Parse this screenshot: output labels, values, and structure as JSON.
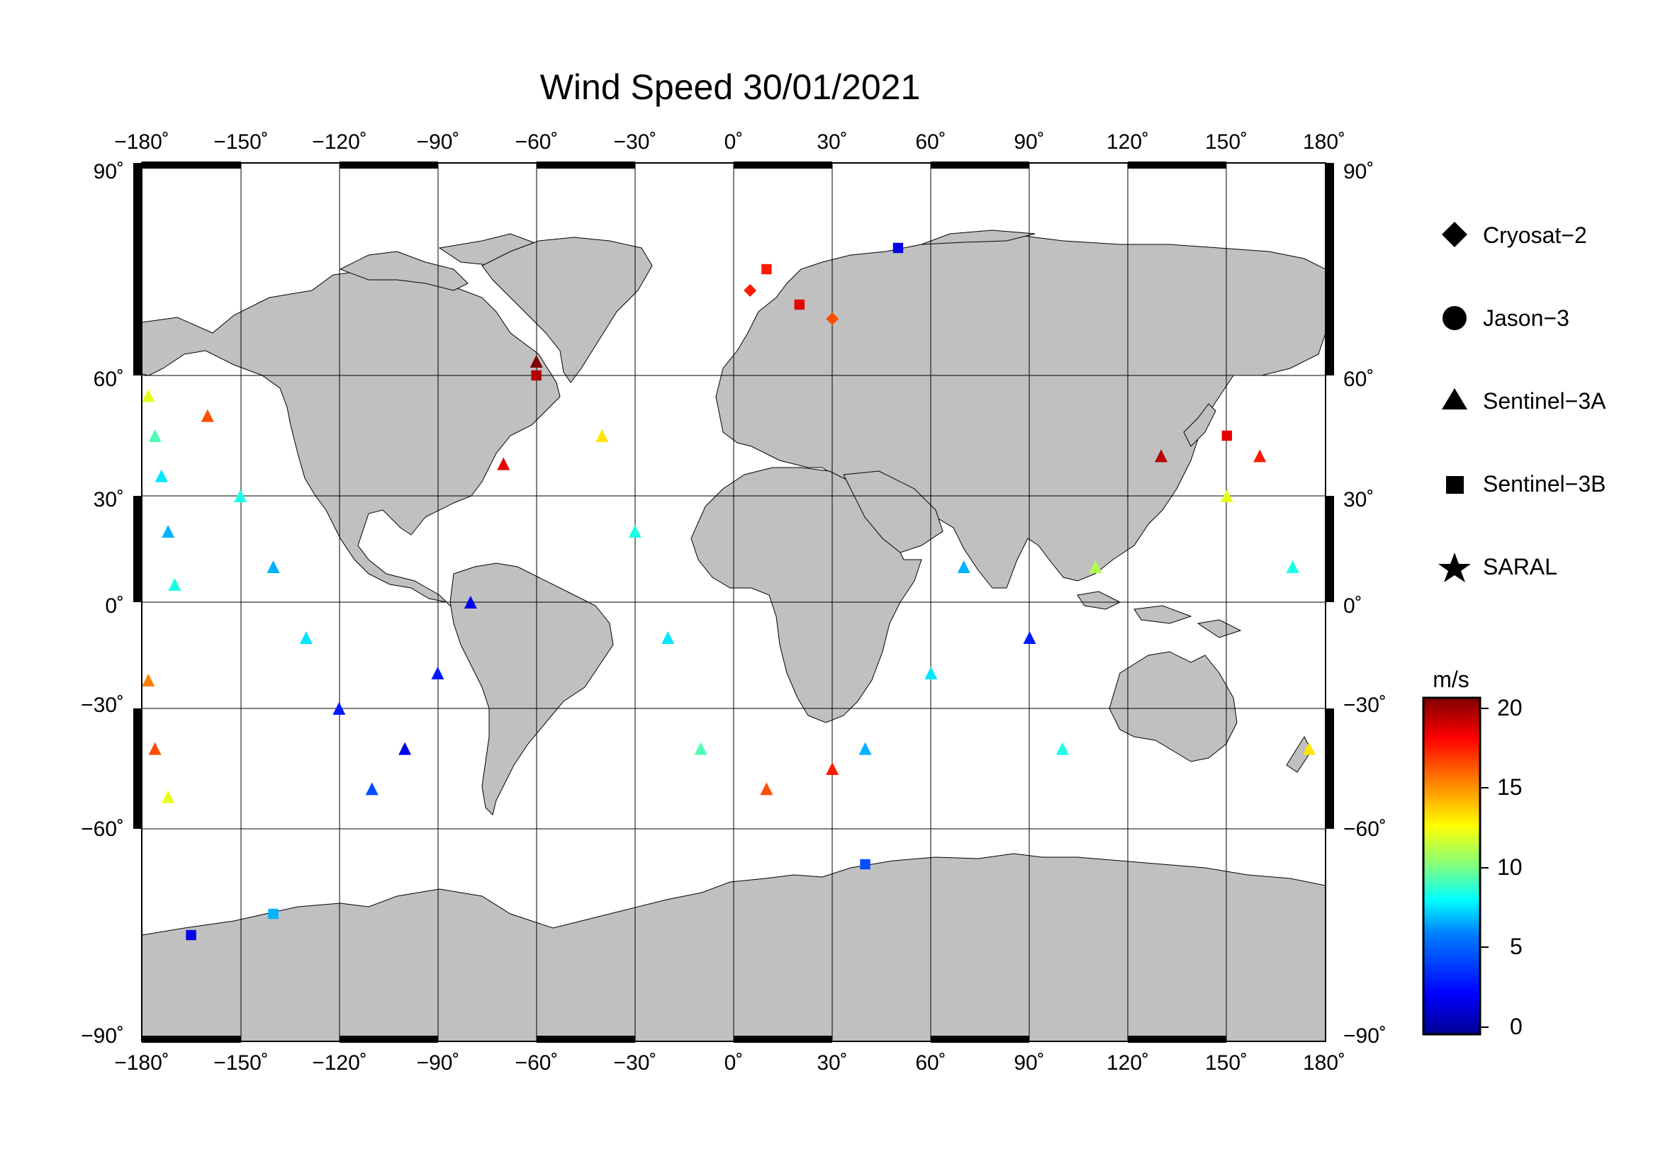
{
  "title": "Wind Speed 30/01/2021",
  "lon_ticks": [
    "−180˚",
    "−150˚",
    "−120˚",
    "−90˚",
    "−60˚",
    "−30˚",
    "0˚",
    "30˚",
    "60˚",
    "90˚",
    "120˚",
    "150˚",
    "180˚"
  ],
  "lat_ticks": [
    "90˚",
    "60˚",
    "30˚",
    "0˚",
    "−30˚",
    "−60˚",
    "−90˚"
  ],
  "legend": [
    {
      "label": "Cryosat−2",
      "symbol": "diamond"
    },
    {
      "label": "Jason−3",
      "symbol": "circle"
    },
    {
      "label": "Sentinel−3A",
      "symbol": "triangle"
    },
    {
      "label": "Sentinel−3B",
      "symbol": "square"
    },
    {
      "label": "SARAL",
      "symbol": "star"
    }
  ],
  "colorbar": {
    "unit": "m/s",
    "min": 0,
    "max": 20,
    "ticks": [
      "20",
      "15",
      "10",
      "5",
      "0"
    ],
    "colormap": [
      "#00008f",
      "#0000ff",
      "#0080ff",
      "#00ffff",
      "#80ff80",
      "#ffff00",
      "#ff8000",
      "#ff0000",
      "#800000"
    ]
  },
  "colors": {
    "land": "#c0c0c0",
    "coast": "#000000",
    "ocean": "#ffffff",
    "frame": "#000000"
  },
  "chart_data": {
    "type": "scatter",
    "title": "Wind Speed 30/01/2021",
    "xlim": [
      -180,
      180
    ],
    "ylim": [
      -90,
      90
    ],
    "grid": true,
    "legend_position": "right",
    "series": [
      {
        "name": "Sentinel−3A",
        "marker": "triangle",
        "points": [
          {
            "lon": -178,
            "lat": 55,
            "v": 12
          },
          {
            "lon": -176,
            "lat": 45,
            "v": 9
          },
          {
            "lon": -174,
            "lat": 35,
            "v": 7
          },
          {
            "lon": -172,
            "lat": 20,
            "v": 6
          },
          {
            "lon": -170,
            "lat": 5,
            "v": 8
          },
          {
            "lon": -178,
            "lat": -22,
            "v": 15
          },
          {
            "lon": -176,
            "lat": -40,
            "v": 16
          },
          {
            "lon": -172,
            "lat": -52,
            "v": 12
          },
          {
            "lon": -160,
            "lat": 50,
            "v": 16
          },
          {
            "lon": -150,
            "lat": 30,
            "v": 8
          },
          {
            "lon": -140,
            "lat": 10,
            "v": 6
          },
          {
            "lon": -130,
            "lat": -10,
            "v": 7
          },
          {
            "lon": -120,
            "lat": -30,
            "v": 3
          },
          {
            "lon": -110,
            "lat": -50,
            "v": 4
          },
          {
            "lon": -100,
            "lat": -40,
            "v": 2
          },
          {
            "lon": -90,
            "lat": -20,
            "v": 3
          },
          {
            "lon": -80,
            "lat": 0,
            "v": 2
          },
          {
            "lon": -70,
            "lat": 38,
            "v": 18
          },
          {
            "lon": -60,
            "lat": 62,
            "v": 20
          },
          {
            "lon": -40,
            "lat": 45,
            "v": 13
          },
          {
            "lon": -30,
            "lat": 20,
            "v": 8
          },
          {
            "lon": -20,
            "lat": -10,
            "v": 7
          },
          {
            "lon": -10,
            "lat": -40,
            "v": 9
          },
          {
            "lon": 10,
            "lat": -50,
            "v": 16
          },
          {
            "lon": 30,
            "lat": -45,
            "v": 17
          },
          {
            "lon": 40,
            "lat": -40,
            "v": 6
          },
          {
            "lon": 60,
            "lat": -20,
            "v": 7
          },
          {
            "lon": 70,
            "lat": 10,
            "v": 6
          },
          {
            "lon": 90,
            "lat": -10,
            "v": 3
          },
          {
            "lon": 100,
            "lat": -40,
            "v": 8
          },
          {
            "lon": 110,
            "lat": 10,
            "v": 11
          },
          {
            "lon": 130,
            "lat": 40,
            "v": 19
          },
          {
            "lon": 150,
            "lat": 30,
            "v": 12
          },
          {
            "lon": 160,
            "lat": 40,
            "v": 17
          },
          {
            "lon": 170,
            "lat": 10,
            "v": 8
          },
          {
            "lon": 175,
            "lat": -40,
            "v": 13
          }
        ]
      },
      {
        "name": "Sentinel−3B",
        "marker": "square",
        "points": [
          {
            "lon": 10,
            "lat": 75,
            "v": 17
          },
          {
            "lon": 20,
            "lat": 70,
            "v": 18
          },
          {
            "lon": 50,
            "lat": 78,
            "v": 2
          },
          {
            "lon": -60,
            "lat": 60,
            "v": 19
          },
          {
            "lon": 150,
            "lat": 45,
            "v": 18
          },
          {
            "lon": 40,
            "lat": -65,
            "v": 4
          },
          {
            "lon": -140,
            "lat": -72,
            "v": 6
          },
          {
            "lon": -165,
            "lat": -75,
            "v": 2
          }
        ]
      },
      {
        "name": "Cryosat−2",
        "marker": "diamond",
        "points": [
          {
            "lon": 5,
            "lat": 72,
            "v": 17
          },
          {
            "lon": 30,
            "lat": 68,
            "v": 16
          }
        ]
      }
    ]
  }
}
